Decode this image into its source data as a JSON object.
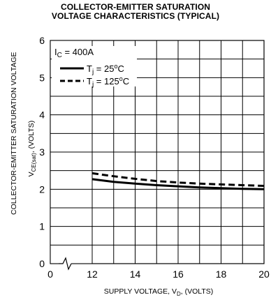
{
  "chart_data": {
    "type": "line",
    "title_lines": [
      "COLLECTOR-EMITTER SATURATION",
      "VOLTAGE CHARACTERISTICS (TYPICAL)"
    ],
    "ylabel_line1": "COLLECTOR-EMITTER SATURATION VOLTAGE",
    "ylabel_line2": {
      "prefix": "V",
      "sub": "CE(sat)",
      "suffix": ", (VOLTS)"
    },
    "xlabel": {
      "prefix": "SUPPLY VOLTAGE, V",
      "sub": "D",
      "suffix": ", (VOLTS)"
    },
    "xlim": [
      12,
      20
    ],
    "ylim": [
      0,
      6
    ],
    "x_ticks": [
      {
        "value": 0,
        "label": "0"
      },
      {
        "value": 12,
        "label": "12"
      },
      {
        "value": 14,
        "label": "14"
      },
      {
        "value": 16,
        "label": "16"
      },
      {
        "value": 18,
        "label": "18"
      },
      {
        "value": 20,
        "label": "20"
      }
    ],
    "y_ticks": [
      0,
      1,
      2,
      3,
      4,
      5,
      6
    ],
    "axis_break": true,
    "grid": true,
    "legend_position": "top-left",
    "legend_header": {
      "prefix": "I",
      "sub": "C",
      "suffix": " = 400A"
    },
    "series": [
      {
        "name": "Tj = 25°C",
        "legend": {
          "prefix": "T",
          "sub": "j",
          "mid": " = 25",
          "sup": "o",
          "suffix": "C"
        },
        "style": "solid",
        "x": [
          12,
          13,
          14,
          15,
          16,
          17,
          18,
          19,
          20
        ],
        "y": [
          2.27,
          2.2,
          2.15,
          2.11,
          2.08,
          2.05,
          2.03,
          2.01,
          2.0
        ]
      },
      {
        "name": "Tj = 125°C",
        "legend": {
          "prefix": "T",
          "sub": "j",
          "mid": " = 125",
          "sup": "o",
          "suffix": "C"
        },
        "style": "dashed",
        "x": [
          12,
          13,
          14,
          15,
          16,
          17,
          18,
          19,
          20
        ],
        "y": [
          2.43,
          2.35,
          2.28,
          2.22,
          2.18,
          2.15,
          2.13,
          2.11,
          2.09
        ]
      }
    ],
    "colors": {
      "line": "#000000",
      "grid": "#000000",
      "background": "#ffffff"
    }
  }
}
